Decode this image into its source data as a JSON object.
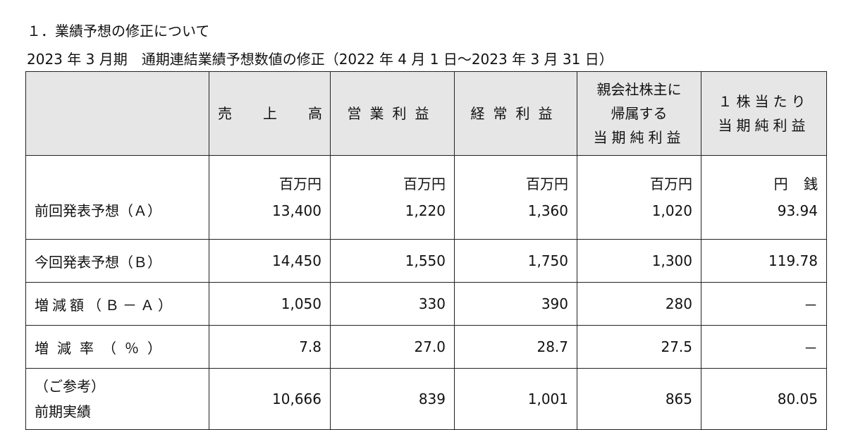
{
  "document": {
    "heading": "１．業績予想の修正について",
    "subheading": "2023 年 3 月期　通期連結業績予想数値の修正（2022 年 4 月 1 日～2023 年 3 月 31 日）"
  },
  "table": {
    "headers": {
      "col0": "",
      "sales": "売　上　高",
      "operating_profit": "営業利益",
      "ordinary_profit": "経常利益",
      "net_income": [
        "親会社株主に",
        "帰属する",
        "当期純利益"
      ],
      "eps": [
        "１株当たり",
        "当期純利益"
      ]
    },
    "units": {
      "sales": "百万円",
      "operating_profit": "百万円",
      "ordinary_profit": "百万円",
      "net_income": "百万円",
      "eps": "円 銭"
    },
    "rows": [
      {
        "label": "前回発表予想（Ａ）",
        "values": [
          "13,400",
          "1,220",
          "1,360",
          "1,020",
          "93.94"
        ]
      },
      {
        "label": "今回発表予想（Ｂ）",
        "values": [
          "14,450",
          "1,550",
          "1,750",
          "1,300",
          "119.78"
        ]
      },
      {
        "label": "増減額（Ｂ－Ａ）",
        "values": [
          "1,050",
          "330",
          "390",
          "280",
          "－"
        ]
      },
      {
        "label": "増減率（％）",
        "values": [
          "7.8",
          "27.0",
          "28.7",
          "27.5",
          "－"
        ]
      },
      {
        "label_lines": [
          "（ご参考）",
          "前期実績"
        ],
        "values": [
          "10,666",
          "839",
          "1,001",
          "865",
          "80.05"
        ]
      }
    ]
  }
}
